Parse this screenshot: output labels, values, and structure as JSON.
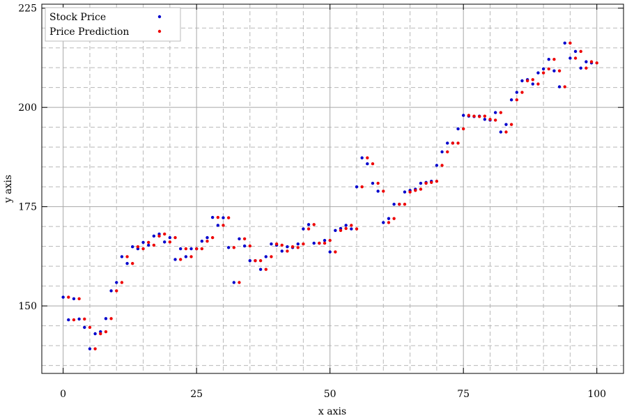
{
  "chart_data": {
    "type": "scatter",
    "title": "",
    "xlabel": "x axis",
    "ylabel": "y axis",
    "xlim": [
      -4,
      105
    ],
    "ylim": [
      133,
      226
    ],
    "xticks": [
      0,
      25,
      50,
      75,
      100
    ],
    "yticks": [
      150,
      175,
      200,
      225
    ],
    "grid": true,
    "minor_grid": true,
    "legend_position": "top-left",
    "x": [
      0,
      1,
      2,
      3,
      4,
      5,
      6,
      7,
      8,
      9,
      10,
      11,
      12,
      13,
      14,
      15,
      16,
      17,
      18,
      19,
      20,
      21,
      22,
      23,
      24,
      25,
      26,
      27,
      28,
      29,
      30,
      31,
      32,
      33,
      34,
      35,
      36,
      37,
      38,
      39,
      40,
      41,
      42,
      43,
      44,
      45,
      46,
      47,
      48,
      49,
      50,
      51,
      52,
      53,
      54,
      55,
      56,
      57,
      58,
      59,
      60,
      61,
      62,
      63,
      64,
      65,
      66,
      67,
      68,
      69,
      70,
      71,
      72,
      73,
      74,
      75,
      76,
      77,
      78,
      79,
      80,
      81,
      82,
      83,
      84,
      85,
      86,
      87,
      88,
      89,
      90,
      91,
      92,
      93,
      94,
      95,
      96,
      97,
      98,
      99
    ],
    "series": [
      {
        "name": "Stock Price",
        "color": "#0000cc",
        "offset": 0,
        "values": [
          152.2,
          146.5,
          151.8,
          146.7,
          144.6,
          139.2,
          143.0,
          143.5,
          146.8,
          153.8,
          155.9,
          162.4,
          160.7,
          164.9,
          164.4,
          166.0,
          165.3,
          167.6,
          168.1,
          166.1,
          167.2,
          161.7,
          164.4,
          162.4,
          164.4,
          164.4,
          166.3,
          167.2,
          172.3,
          170.3,
          172.2,
          164.7,
          155.9,
          166.9,
          165.1,
          161.4,
          161.4,
          159.2,
          162.4,
          165.6,
          165.3,
          163.8,
          164.9,
          164.7,
          165.6,
          169.4,
          170.5,
          165.8,
          165.8,
          166.5,
          163.6,
          169.0,
          169.5,
          170.3,
          169.4,
          180.0,
          187.3,
          185.8,
          180.9,
          178.9,
          171.0,
          172.0,
          175.6,
          175.6,
          178.7,
          179.1,
          179.4,
          180.9,
          181.1,
          181.4,
          185.4,
          188.8,
          191.0,
          191.0,
          194.6,
          198.0,
          197.8,
          197.7,
          197.8,
          197.0,
          196.8,
          198.7,
          193.8,
          195.7,
          201.9,
          203.8,
          206.7,
          207.0,
          205.9,
          208.7,
          209.7,
          212.1,
          209.2,
          205.2,
          216.2,
          212.4,
          214.1,
          209.9,
          211.5,
          211.2
        ]
      },
      {
        "name": "Price Prediction",
        "color": "#ee0000",
        "offset": 1,
        "values": [
          152.2,
          146.5,
          151.8,
          146.7,
          144.6,
          139.2,
          143.0,
          143.5,
          146.8,
          153.8,
          155.9,
          162.4,
          160.7,
          164.9,
          164.4,
          166.0,
          165.3,
          167.6,
          168.1,
          166.1,
          167.2,
          161.7,
          164.4,
          162.4,
          164.4,
          164.4,
          166.3,
          167.2,
          172.3,
          170.3,
          172.2,
          164.7,
          155.9,
          166.9,
          165.1,
          161.4,
          161.4,
          159.2,
          162.4,
          165.6,
          165.3,
          163.8,
          164.9,
          164.7,
          165.6,
          169.4,
          170.5,
          165.8,
          165.8,
          166.5,
          163.6,
          169.0,
          169.5,
          170.3,
          169.4,
          180.0,
          187.3,
          185.8,
          180.9,
          178.9,
          171.0,
          172.0,
          175.6,
          175.6,
          178.7,
          179.1,
          179.4,
          180.9,
          181.1,
          181.4,
          185.4,
          188.8,
          191.0,
          191.0,
          194.6,
          198.0,
          197.8,
          197.7,
          197.8,
          197.0,
          196.8,
          198.7,
          193.8,
          195.7,
          201.9,
          203.8,
          206.7,
          207.0,
          205.9,
          208.7,
          209.7,
          212.1,
          209.2,
          205.2,
          216.2,
          212.4,
          214.1,
          209.9,
          211.5,
          211.2
        ]
      }
    ]
  }
}
